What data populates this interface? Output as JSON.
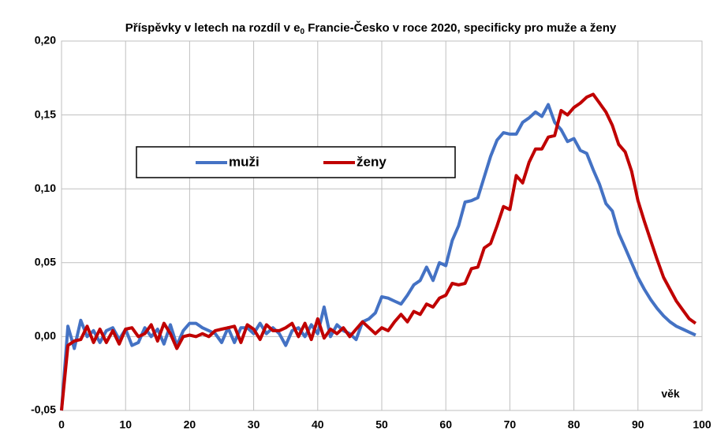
{
  "chart_data": {
    "type": "line",
    "title": [
      "Příspěvky v letech na rozdíl v e",
      "0",
      " Francie-Česko  v roce 2020, specificky  pro muže a ženy"
    ],
    "x_label": "věk",
    "x": [
      0,
      1,
      2,
      3,
      4,
      5,
      6,
      7,
      8,
      9,
      10,
      11,
      12,
      13,
      14,
      15,
      16,
      17,
      18,
      19,
      20,
      21,
      22,
      23,
      24,
      25,
      26,
      27,
      28,
      29,
      30,
      31,
      32,
      33,
      34,
      35,
      36,
      37,
      38,
      39,
      40,
      41,
      42,
      43,
      44,
      45,
      46,
      47,
      48,
      49,
      50,
      51,
      52,
      53,
      54,
      55,
      56,
      57,
      58,
      59,
      60,
      61,
      62,
      63,
      64,
      65,
      66,
      67,
      68,
      69,
      70,
      71,
      72,
      73,
      74,
      75,
      76,
      77,
      78,
      79,
      80,
      81,
      82,
      83,
      84,
      85,
      86,
      87,
      88,
      89,
      90,
      91,
      92,
      93,
      94,
      95,
      96,
      97,
      98,
      99
    ],
    "series": [
      {
        "name": "muži",
        "color": "#4472c4",
        "values": [
          -0.05,
          0.007,
          -0.008,
          0.011,
          0.0,
          0.004,
          -0.004,
          0.004,
          0.006,
          -0.002,
          0.005,
          -0.006,
          -0.004,
          0.006,
          0.0,
          0.005,
          -0.005,
          0.008,
          -0.006,
          0.004,
          0.009,
          0.009,
          0.006,
          0.004,
          0.002,
          -0.004,
          0.006,
          -0.004,
          0.006,
          0.006,
          0.002,
          0.009,
          0.002,
          0.006,
          0.002,
          -0.006,
          0.004,
          0.006,
          0.0,
          0.008,
          0.002,
          0.02,
          0.0,
          0.008,
          0.004,
          0.002,
          -0.002,
          0.01,
          0.012,
          0.016,
          0.027,
          0.026,
          0.024,
          0.022,
          0.028,
          0.035,
          0.038,
          0.047,
          0.038,
          0.05,
          0.048,
          0.065,
          0.075,
          0.091,
          0.092,
          0.094,
          0.108,
          0.122,
          0.133,
          0.138,
          0.137,
          0.137,
          0.145,
          0.148,
          0.152,
          0.149,
          0.157,
          0.145,
          0.14,
          0.132,
          0.134,
          0.126,
          0.124,
          0.113,
          0.103,
          0.09,
          0.085,
          0.07,
          0.06,
          0.05,
          0.04,
          0.032,
          0.025,
          0.019,
          0.014,
          0.01,
          0.007,
          0.005,
          0.003,
          0.001
        ]
      },
      {
        "name": "ženy",
        "color": "#c00000",
        "values": [
          -0.05,
          -0.006,
          -0.003,
          -0.002,
          0.007,
          -0.004,
          0.005,
          -0.004,
          0.004,
          -0.005,
          0.005,
          0.006,
          0.0,
          0.002,
          0.008,
          -0.003,
          0.009,
          0.002,
          -0.008,
          0.0,
          0.001,
          0.0,
          0.002,
          0.0,
          0.004,
          0.005,
          0.006,
          0.007,
          -0.004,
          0.008,
          0.005,
          -0.002,
          0.008,
          0.004,
          0.004,
          0.006,
          0.009,
          0.0,
          0.009,
          -0.002,
          0.012,
          -0.001,
          0.005,
          0.002,
          0.006,
          0.0,
          0.005,
          0.01,
          0.006,
          0.002,
          0.006,
          0.004,
          0.01,
          0.015,
          0.01,
          0.017,
          0.015,
          0.022,
          0.02,
          0.026,
          0.028,
          0.036,
          0.035,
          0.036,
          0.046,
          0.047,
          0.06,
          0.063,
          0.075,
          0.088,
          0.086,
          0.109,
          0.104,
          0.118,
          0.127,
          0.127,
          0.135,
          0.136,
          0.153,
          0.15,
          0.155,
          0.158,
          0.162,
          0.164,
          0.158,
          0.152,
          0.143,
          0.13,
          0.125,
          0.112,
          0.092,
          0.078,
          0.065,
          0.052,
          0.04,
          0.032,
          0.024,
          0.018,
          0.012,
          0.009
        ]
      }
    ],
    "xlim": [
      0,
      100
    ],
    "xticks": [
      0,
      10,
      20,
      30,
      40,
      50,
      60,
      70,
      80,
      90,
      100
    ],
    "ylim": [
      -0.05,
      0.2
    ],
    "yticks": [
      {
        "value": -0.05,
        "label": "-0,05"
      },
      {
        "value": 0,
        "label": "0,00"
      },
      {
        "value": 0.05,
        "label": "0,05"
      },
      {
        "value": 0.1,
        "label": "0,10"
      },
      {
        "value": 0.15,
        "label": "0,15"
      },
      {
        "value": 0.2,
        "label": "0,20"
      }
    ],
    "grid": true
  }
}
